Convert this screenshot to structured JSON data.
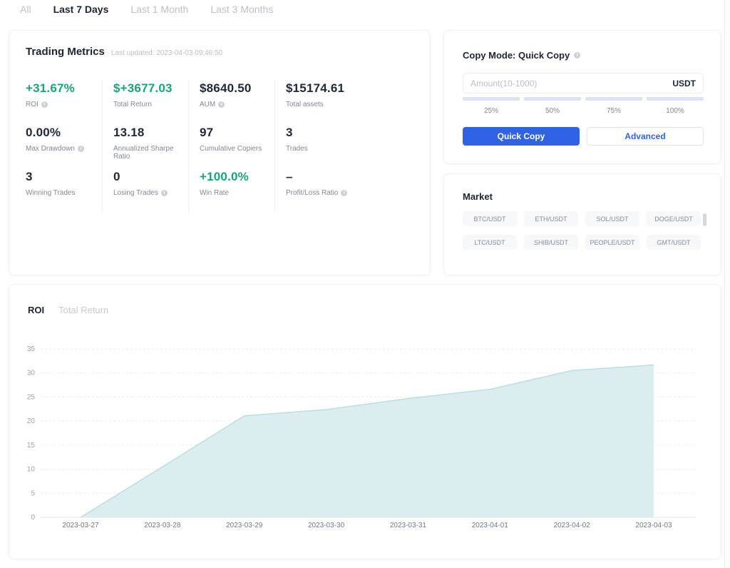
{
  "period_tabs": {
    "items": [
      {
        "label": "All",
        "active": false
      },
      {
        "label": "Last 7 Days",
        "active": true
      },
      {
        "label": "Last 1 Month",
        "active": false
      },
      {
        "label": "Last 3 Months",
        "active": false
      }
    ]
  },
  "metrics_card": {
    "title": "Trading Metrics",
    "last_updated": "Last updated: 2023-04-03 09:46:50",
    "items": [
      {
        "value": "+31.67%",
        "label": "ROI",
        "green": true,
        "info": true
      },
      {
        "value": "$+3677.03",
        "label": "Total Return",
        "green": true,
        "info": false
      },
      {
        "value": "$8640.50",
        "label": "AUM",
        "green": false,
        "info": true
      },
      {
        "value": "$15174.61",
        "label": "Total assets",
        "green": false,
        "info": false
      },
      {
        "value": "0.00%",
        "label": "Max Drawdown",
        "green": false,
        "info": true
      },
      {
        "value": "13.18",
        "label": "Annualized Sharpe Ratio",
        "green": false,
        "info": false
      },
      {
        "value": "97",
        "label": "Cumulative Copiers",
        "green": false,
        "info": false
      },
      {
        "value": "3",
        "label": "Trades",
        "green": false,
        "info": false
      },
      {
        "value": "3",
        "label": "Winning Trades",
        "green": false,
        "info": false
      },
      {
        "value": "0",
        "label": "Losing Trades",
        "green": false,
        "info": true
      },
      {
        "value": "+100.0%",
        "label": "Win Rate",
        "green": true,
        "info": false
      },
      {
        "value": "–",
        "label": "Profit/Loss Ratio",
        "green": false,
        "info": true
      }
    ]
  },
  "copy_card": {
    "title": "Copy Mode: Quick Copy",
    "amount_placeholder": "Amount(10-1000)",
    "amount_value": "",
    "currency": "USDT",
    "percent_options": [
      "25%",
      "50%",
      "75%",
      "100%"
    ],
    "quick_copy_label": "Quick Copy",
    "advanced_label": "Advanced"
  },
  "market_card": {
    "title": "Market",
    "pairs": [
      "BTC/USDT",
      "ETH/USDT",
      "SOL/USDT",
      "DOGE/USDT",
      "LTC/USDT",
      "SHIB/USDT",
      "PEOPLE/USDT",
      "GMT/USDT"
    ]
  },
  "chart_card": {
    "tabs": [
      {
        "label": "ROI",
        "active": true
      },
      {
        "label": "Total Return",
        "active": false
      }
    ]
  },
  "chart_data": {
    "type": "area",
    "title": "ROI",
    "x": [
      "2023-03-27",
      "2023-03-28",
      "2023-03-29",
      "2023-03-30",
      "2023-03-31",
      "2023-04-01",
      "2023-04-02",
      "2023-04-03"
    ],
    "values": [
      0,
      10.5,
      21.1,
      22.4,
      24.7,
      26.6,
      30.5,
      31.67
    ],
    "ylim": [
      0,
      35
    ],
    "yticks": [
      0,
      5,
      10,
      15,
      20,
      25,
      30,
      35
    ],
    "grid": "horizontal-dashed",
    "legend": "none",
    "fill_color": "#dcedef",
    "line_color": "#b9dfe3"
  },
  "colors": {
    "accent_blue": "#2f62e5",
    "positive_green": "#17a477",
    "text_dark": "#1d2433",
    "text_gray": "#818795",
    "text_light": "#bcc0cb"
  }
}
